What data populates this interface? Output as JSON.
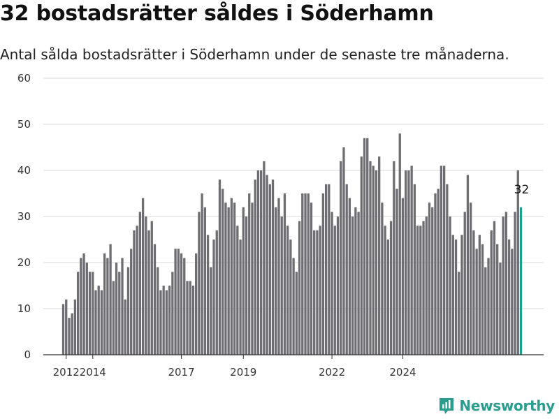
{
  "title": "32 bostadsrätter såldes i Söderhamn",
  "subtitle": "Antal sålda bostadsrätter i Söderhamn under de senaste tre månaderna.",
  "brand": "Newsworthy",
  "colors": {
    "bar": "#6e6d72",
    "highlight": "#1f9e8f",
    "grid": "#d9d9d9",
    "axis": "#333333"
  },
  "chart_data": {
    "type": "bar",
    "title": "32 bostadsrätter såldes i Söderhamn",
    "subtitle": "Antal sålda bostadsrätter i Söderhamn under de senaste tre månaderna.",
    "xlabel": "",
    "ylabel": "",
    "ylim": [
      0,
      60
    ],
    "yticks": [
      0,
      10,
      20,
      30,
      40,
      50,
      60
    ],
    "xticks": [
      "2012",
      "2014",
      "2017",
      "2019",
      "2022",
      "2024"
    ],
    "xtick_index": [
      1,
      10,
      40,
      61,
      91,
      115
    ],
    "grid": true,
    "highlight_label": "32",
    "values": [
      11,
      12,
      8,
      9,
      12,
      18,
      21,
      22,
      20,
      18,
      18,
      14,
      15,
      14,
      22,
      21,
      24,
      16,
      20,
      18,
      21,
      12,
      19,
      23,
      27,
      28,
      31,
      34,
      30,
      27,
      29,
      24,
      19,
      14,
      15,
      14,
      15,
      18,
      23,
      23,
      22,
      21,
      16,
      16,
      15,
      22,
      31,
      35,
      32,
      26,
      19,
      25,
      27,
      38,
      36,
      33,
      32,
      34,
      33,
      28,
      25,
      32,
      30,
      35,
      33,
      38,
      40,
      40,
      42,
      39,
      37,
      38,
      32,
      34,
      30,
      35,
      28,
      25,
      21,
      18,
      29,
      35,
      35,
      35,
      33,
      27,
      27,
      28,
      35,
      37,
      37,
      31,
      28,
      30,
      42,
      45,
      37,
      34,
      30,
      32,
      31,
      43,
      47,
      47,
      42,
      41,
      40,
      43,
      33,
      28,
      25,
      29,
      42,
      36,
      48,
      34,
      40,
      40,
      41,
      37,
      28,
      28,
      29,
      30,
      33,
      32,
      35,
      36,
      41,
      41,
      37,
      30,
      26,
      25,
      18,
      26,
      31,
      39,
      33,
      27,
      23,
      26,
      24,
      19,
      21,
      27,
      29,
      24,
      20,
      30,
      31,
      25,
      23,
      31,
      40,
      32
    ]
  }
}
